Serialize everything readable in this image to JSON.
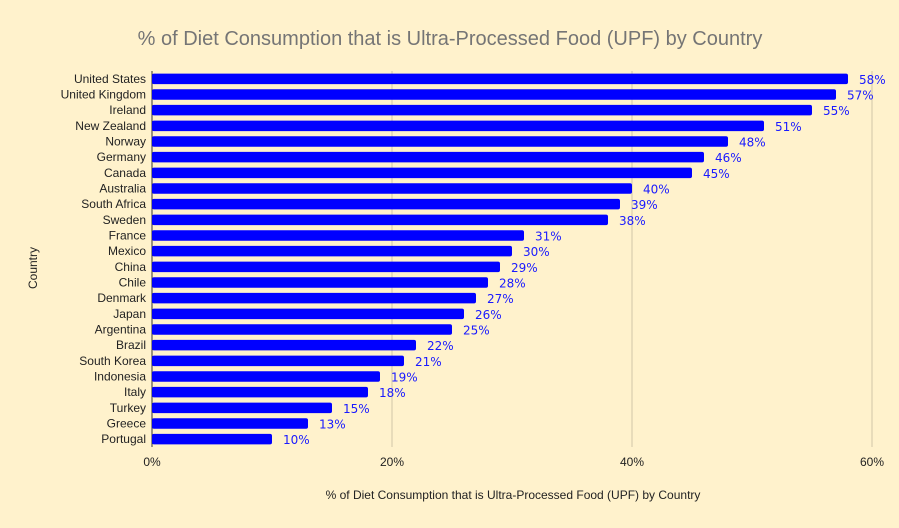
{
  "chart_data": {
    "type": "bar",
    "orientation": "horizontal",
    "title": "% of Diet Consumption that is Ultra-Processed Food (UPF) by Country",
    "xlabel": "% of Diet Consumption that is Ultra-Processed Food (UPF) by Country",
    "ylabel": "Country",
    "xlim": [
      0,
      60
    ],
    "xticks": [
      "0%",
      "20%",
      "40%",
      "60%"
    ],
    "grid": true,
    "bar_color": "#0000ff",
    "label_color": "#1a1aff",
    "background": "#fff2cc",
    "categories": [
      "United States",
      "United Kingdom",
      "Ireland",
      "New Zealand",
      "Norway",
      "Germany",
      "Canada",
      "Australia",
      "South Africa",
      "Sweden",
      "France",
      "Mexico",
      "China",
      "Chile",
      "Denmark",
      "Japan",
      "Argentina",
      "Brazil",
      "South Korea",
      "Indonesia",
      "Italy",
      "Turkey",
      "Greece",
      "Portugal"
    ],
    "values": [
      58,
      57,
      55,
      51,
      48,
      46,
      45,
      40,
      39,
      38,
      31,
      30,
      29,
      28,
      27,
      26,
      25,
      22,
      21,
      19,
      18,
      15,
      13,
      10
    ],
    "data_labels": [
      "58%",
      "57%",
      "55%",
      "51%",
      "48%",
      "46%",
      "45%",
      "40%",
      "39%",
      "38%",
      "31%",
      "30%",
      "29%",
      "28%",
      "27%",
      "26%",
      "25%",
      "22%",
      "21%",
      "19%",
      "18%",
      "15%",
      "13%",
      "10%"
    ]
  }
}
